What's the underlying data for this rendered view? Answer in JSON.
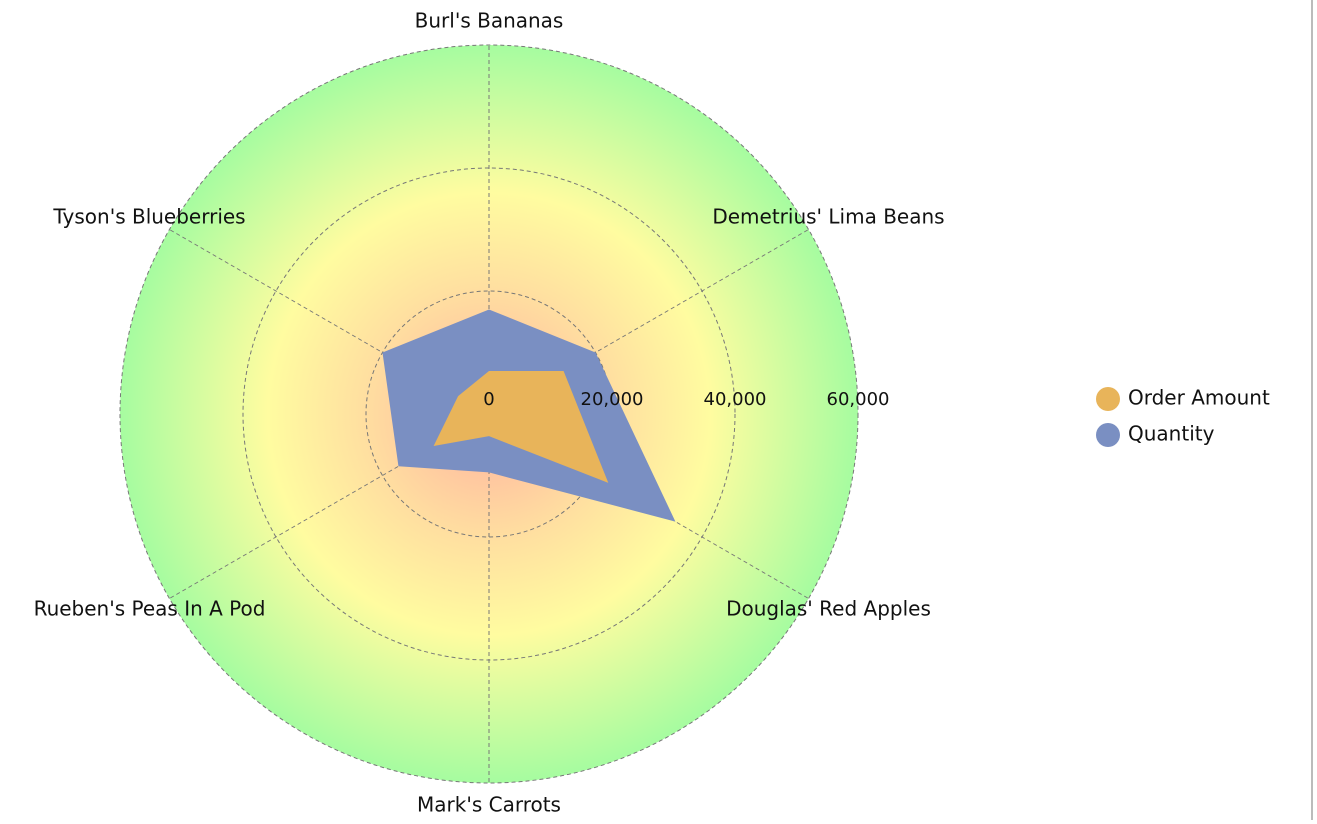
{
  "chart_data": {
    "type": "radar",
    "categories": [
      "Burl's Bananas",
      "Demetrius' Lima Beans",
      "Douglas' Red Apples",
      "Mark's Carrots",
      "Rueben's Peas In A Pod",
      "Tyson's Blueberries"
    ],
    "series": [
      {
        "name": "Order Amount",
        "color": "#e8b45a",
        "values": [
          7000,
          14000,
          22400,
          3600,
          10400,
          5800
        ]
      },
      {
        "name": "Quantity",
        "color": "#7a8fc2",
        "values": [
          17000,
          20000,
          35000,
          9500,
          17000,
          20000
        ]
      }
    ],
    "ylim": [
      0,
      60000
    ],
    "yticks": [
      0,
      {
        "value": 20000,
        "label": "20,000"
      },
      {
        "value": 40000,
        "label": "40,000"
      },
      {
        "value": 60000,
        "label": "60,000"
      }
    ],
    "grid": true,
    "legend": "right"
  }
}
